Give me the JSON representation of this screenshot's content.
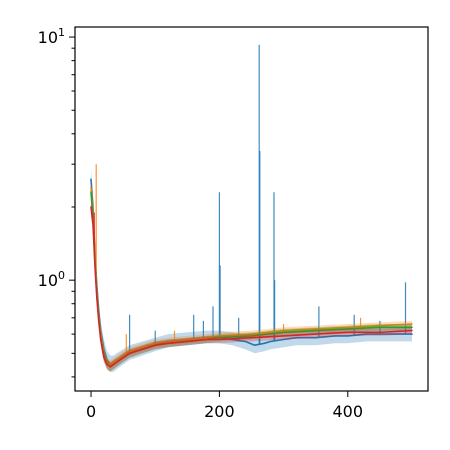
{
  "chart_data": {
    "type": "line",
    "title": "",
    "xlabel": "",
    "ylabel": "",
    "xlim": [
      -25,
      525
    ],
    "ylim": [
      0.35,
      11.0
    ],
    "yscale": "log",
    "grid": false,
    "legend": "none",
    "xticks": [
      {
        "value": 0,
        "label": "0"
      },
      {
        "value": 200,
        "label": "200"
      },
      {
        "value": 400,
        "label": "400"
      }
    ],
    "yticks_major": [
      {
        "value": 1,
        "label": "10⁰",
        "base": "10",
        "exp": "0"
      },
      {
        "value": 10,
        "label": "10¹",
        "base": "10",
        "exp": "1"
      }
    ],
    "yticks_minor": [
      0.4,
      0.5,
      0.6,
      0.7,
      0.8,
      0.9,
      2,
      3,
      4,
      5,
      6,
      7,
      8,
      9
    ],
    "series": [
      {
        "color": "#1f77b4",
        "band": true,
        "x": [
          0,
          3,
          6,
          9,
          12,
          15,
          20,
          25,
          30,
          35,
          40,
          50,
          60,
          80,
          100,
          120,
          150,
          180,
          200,
          220,
          240,
          255,
          270,
          280,
          300,
          320,
          350,
          380,
          400,
          430,
          460,
          500
        ],
        "y": [
          2.6,
          2.0,
          1.3,
          0.95,
          0.75,
          0.62,
          0.52,
          0.47,
          0.45,
          0.45,
          0.46,
          0.48,
          0.5,
          0.52,
          0.54,
          0.56,
          0.57,
          0.58,
          0.58,
          0.57,
          0.56,
          0.54,
          0.55,
          0.56,
          0.57,
          0.58,
          0.58,
          0.59,
          0.59,
          0.6,
          0.6,
          0.6
        ],
        "y_low": [
          2.3,
          1.8,
          1.15,
          0.85,
          0.67,
          0.56,
          0.47,
          0.43,
          0.42,
          0.42,
          0.43,
          0.45,
          0.47,
          0.49,
          0.51,
          0.53,
          0.54,
          0.55,
          0.55,
          0.54,
          0.52,
          0.5,
          0.51,
          0.52,
          0.53,
          0.54,
          0.54,
          0.55,
          0.55,
          0.56,
          0.56,
          0.56
        ],
        "y_high": [
          2.9,
          2.2,
          1.45,
          1.05,
          0.83,
          0.68,
          0.57,
          0.51,
          0.49,
          0.49,
          0.5,
          0.52,
          0.54,
          0.56,
          0.58,
          0.6,
          0.61,
          0.62,
          0.62,
          0.61,
          0.6,
          0.59,
          0.6,
          0.61,
          0.62,
          0.63,
          0.63,
          0.64,
          0.64,
          0.65,
          0.65,
          0.66
        ],
        "spikes": [
          {
            "x": 60,
            "y": 0.72
          },
          {
            "x": 100,
            "y": 0.62
          },
          {
            "x": 160,
            "y": 0.72
          },
          {
            "x": 175,
            "y": 0.68
          },
          {
            "x": 190,
            "y": 0.78
          },
          {
            "x": 200,
            "y": 2.3
          },
          {
            "x": 201,
            "y": 1.15
          },
          {
            "x": 230,
            "y": 0.7
          },
          {
            "x": 262,
            "y": 9.3
          },
          {
            "x": 263,
            "y": 3.4
          },
          {
            "x": 285,
            "y": 2.3
          },
          {
            "x": 286,
            "y": 1.0
          },
          {
            "x": 355,
            "y": 0.78
          },
          {
            "x": 410,
            "y": 0.72
          },
          {
            "x": 450,
            "y": 0.68
          },
          {
            "x": 490,
            "y": 0.98
          }
        ]
      },
      {
        "color": "#ff7f0e",
        "band": true,
        "x": [
          0,
          3,
          6,
          9,
          12,
          15,
          20,
          25,
          30,
          35,
          40,
          50,
          60,
          80,
          100,
          120,
          150,
          180,
          200,
          250,
          300,
          350,
          400,
          450,
          500
        ],
        "y": [
          2.4,
          1.9,
          1.25,
          0.9,
          0.72,
          0.6,
          0.5,
          0.46,
          0.45,
          0.46,
          0.47,
          0.49,
          0.51,
          0.53,
          0.55,
          0.56,
          0.57,
          0.58,
          0.59,
          0.6,
          0.62,
          0.63,
          0.64,
          0.65,
          0.66
        ],
        "y_low": [
          2.2,
          1.75,
          1.15,
          0.83,
          0.67,
          0.56,
          0.47,
          0.44,
          0.43,
          0.44,
          0.45,
          0.47,
          0.49,
          0.51,
          0.53,
          0.54,
          0.55,
          0.56,
          0.57,
          0.58,
          0.6,
          0.61,
          0.62,
          0.63,
          0.64
        ],
        "y_high": [
          2.6,
          2.05,
          1.35,
          0.97,
          0.77,
          0.64,
          0.53,
          0.48,
          0.47,
          0.48,
          0.49,
          0.51,
          0.53,
          0.55,
          0.57,
          0.58,
          0.59,
          0.6,
          0.61,
          0.62,
          0.64,
          0.65,
          0.66,
          0.67,
          0.68
        ],
        "spikes": [
          {
            "x": 8,
            "y": 3.0
          },
          {
            "x": 55,
            "y": 0.6
          },
          {
            "x": 130,
            "y": 0.62
          },
          {
            "x": 300,
            "y": 0.66
          },
          {
            "x": 420,
            "y": 0.7
          }
        ]
      },
      {
        "color": "#2ca02c",
        "band": true,
        "x": [
          0,
          3,
          6,
          9,
          12,
          15,
          20,
          25,
          30,
          35,
          40,
          50,
          60,
          80,
          100,
          120,
          150,
          180,
          200,
          250,
          300,
          350,
          400,
          450,
          500
        ],
        "y": [
          2.3,
          1.8,
          1.2,
          0.88,
          0.7,
          0.58,
          0.49,
          0.45,
          0.44,
          0.45,
          0.46,
          0.48,
          0.5,
          0.52,
          0.54,
          0.55,
          0.56,
          0.57,
          0.58,
          0.59,
          0.61,
          0.62,
          0.63,
          0.64,
          0.64
        ],
        "y_low": [
          2.1,
          1.65,
          1.1,
          0.82,
          0.65,
          0.54,
          0.46,
          0.43,
          0.42,
          0.43,
          0.44,
          0.46,
          0.48,
          0.5,
          0.52,
          0.53,
          0.54,
          0.55,
          0.56,
          0.57,
          0.59,
          0.6,
          0.61,
          0.62,
          0.62
        ],
        "y_high": [
          2.5,
          1.95,
          1.3,
          0.95,
          0.75,
          0.62,
          0.52,
          0.47,
          0.46,
          0.47,
          0.48,
          0.5,
          0.52,
          0.54,
          0.56,
          0.57,
          0.58,
          0.59,
          0.6,
          0.61,
          0.63,
          0.64,
          0.65,
          0.66,
          0.66
        ],
        "spikes": []
      },
      {
        "color": "#d62728",
        "band": true,
        "x": [
          0,
          3,
          6,
          9,
          12,
          15,
          20,
          25,
          30,
          35,
          40,
          50,
          60,
          80,
          100,
          120,
          150,
          180,
          200,
          250,
          300,
          350,
          400,
          450,
          500
        ],
        "y": [
          2.0,
          1.7,
          1.15,
          0.85,
          0.68,
          0.57,
          0.48,
          0.45,
          0.44,
          0.45,
          0.46,
          0.48,
          0.5,
          0.52,
          0.54,
          0.55,
          0.56,
          0.57,
          0.57,
          0.58,
          0.59,
          0.6,
          0.61,
          0.61,
          0.62
        ],
        "y_low": [
          1.85,
          1.55,
          1.05,
          0.79,
          0.64,
          0.54,
          0.46,
          0.43,
          0.42,
          0.43,
          0.44,
          0.46,
          0.48,
          0.5,
          0.52,
          0.53,
          0.54,
          0.55,
          0.55,
          0.56,
          0.57,
          0.58,
          0.59,
          0.59,
          0.6
        ],
        "y_high": [
          2.2,
          1.85,
          1.25,
          0.92,
          0.73,
          0.6,
          0.51,
          0.47,
          0.46,
          0.47,
          0.48,
          0.5,
          0.52,
          0.54,
          0.56,
          0.57,
          0.58,
          0.59,
          0.59,
          0.6,
          0.61,
          0.62,
          0.63,
          0.63,
          0.64
        ],
        "spikes": [
          {
            "x": 5,
            "y": 1.9
          }
        ]
      }
    ]
  }
}
